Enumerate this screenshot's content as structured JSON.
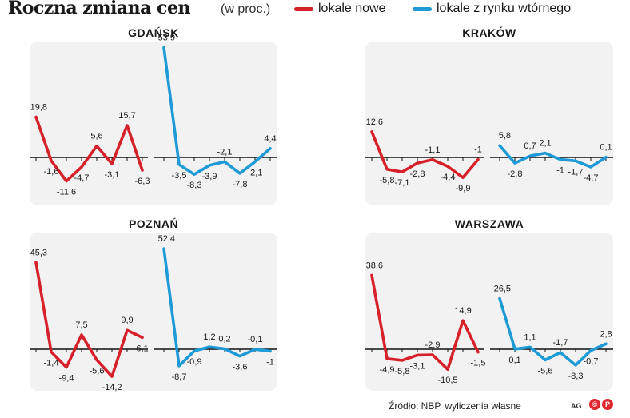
{
  "header": {
    "title": "Roczna zmiana cen",
    "subtitle": "(w proc.)",
    "legend": [
      {
        "label": "lokale nowe",
        "color": "#d6202a"
      },
      {
        "label": "lokale z rynku wtórnego",
        "color": "#1e9ad6"
      }
    ]
  },
  "footer": {
    "source": "Źródło: NBP, wyliczenia własne",
    "credit": "AG",
    "copyright_icons": [
      "©",
      "P"
    ]
  },
  "chart_data": [
    {
      "type": "line",
      "title": "GDAŃSK",
      "series": [
        {
          "name": "lokale nowe",
          "color": "#d6202a",
          "values": [
            19.8,
            -1.6,
            -11.6,
            -4.7,
            5.6,
            -3.1,
            15.7,
            -6.3
          ],
          "labels": [
            "19,8",
            "-1,6",
            "-11,6",
            "-4,7",
            "5,6",
            "-3,1",
            "15,7",
            "-6,3"
          ]
        },
        {
          "name": "lokale z rynku wtórnego",
          "color": "#1e9ad6",
          "values": [
            53.9,
            -3.5,
            -8.3,
            -3.9,
            -2.1,
            -7.8,
            -2.1,
            4.4
          ],
          "labels": [
            "53,9",
            "-3,5",
            "-8,3",
            "-3,9",
            "-2,1",
            "-7,8",
            "-2,1",
            "4,4"
          ]
        }
      ]
    },
    {
      "type": "line",
      "title": "KRAKÓW",
      "series": [
        {
          "name": "lokale nowe",
          "color": "#d6202a",
          "values": [
            12.6,
            -5.8,
            -7.1,
            -2.8,
            -1.1,
            -4.4,
            -9.9,
            -1
          ],
          "labels": [
            "12,6",
            "-5,8",
            "-7,1",
            "-2,8",
            "-1,1",
            "-4,4",
            "-9,9",
            "-1"
          ]
        },
        {
          "name": "lokale z rynku wtórnego",
          "color": "#1e9ad6",
          "values": [
            5.8,
            -2.8,
            0.7,
            2.1,
            -1,
            -1.7,
            -4.7,
            0.1
          ],
          "labels": [
            "5,8",
            "-2,8",
            "0,7",
            "2,1",
            "-1",
            "-1,7",
            "-4,7",
            "0,1"
          ]
        }
      ]
    },
    {
      "type": "line",
      "title": "POZNAŃ",
      "series": [
        {
          "name": "lokale nowe",
          "color": "#d6202a",
          "values": [
            45.3,
            -1.4,
            -9.4,
            7.5,
            -5.6,
            -14.2,
            9.9,
            6.1
          ],
          "labels": [
            "45,3",
            "-1,4",
            "-9,4",
            "7,5",
            "-5,6",
            "-14,2",
            "9,9",
            "6,1"
          ]
        },
        {
          "name": "lokale z rynku wtórnego",
          "color": "#1e9ad6",
          "values": [
            52.4,
            -8.7,
            -0.9,
            1.2,
            0.2,
            -3.6,
            -0.1,
            -1
          ],
          "labels": [
            "52,4",
            "-8,7",
            "-0,9",
            "1,2",
            "0,2",
            "-3,6",
            "-0,1",
            "-1"
          ]
        }
      ]
    },
    {
      "type": "line",
      "title": "WARSZAWA",
      "series": [
        {
          "name": "lokale nowe",
          "color": "#d6202a",
          "values": [
            38.6,
            -4.9,
            -5.8,
            -3.1,
            -2.9,
            -10.5,
            14.9,
            -1.5
          ],
          "labels": [
            "38,6",
            "-4,9",
            "-5,8",
            "-3,1",
            "-2,9",
            "-10,5",
            "14,9",
            "-1,5"
          ]
        },
        {
          "name": "lokale z rynku wtórnego",
          "color": "#1e9ad6",
          "values": [
            26.5,
            0.1,
            1.1,
            -5.6,
            -1.7,
            -8.3,
            -0.7,
            2.8
          ],
          "labels": [
            "26,5",
            "0,1",
            "1,1",
            "-5,6",
            "-1,7",
            "-8,3",
            "-0,7",
            "2,8"
          ]
        }
      ]
    }
  ]
}
